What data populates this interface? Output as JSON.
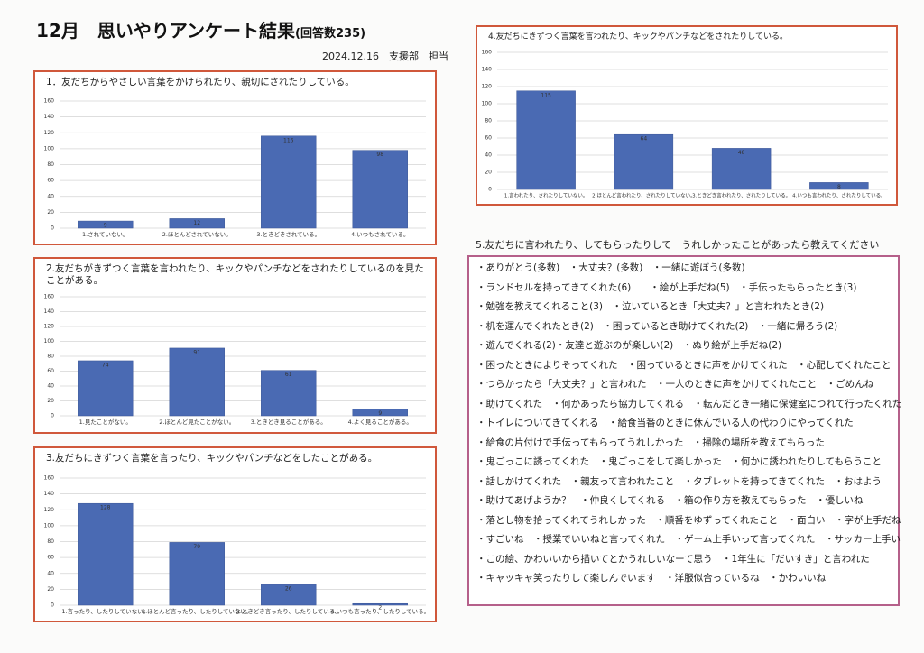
{
  "header": {
    "title": "12月　思いやりアンケート結果",
    "count": "(回答数235)",
    "date": "2024.12.16　支援部　担当"
  },
  "chart_data": [
    {
      "type": "bar",
      "title": "1．友だちからやさしい言葉をかけられたり、親切にされたりしている。",
      "categories": [
        "1.されていない。",
        "2.ほとんどされていない。",
        "3.ときどきされている。",
        "4.いつもされている。"
      ],
      "values": [
        9,
        12,
        116,
        98
      ],
      "color": "#4a6ab3",
      "ylim": [
        0,
        160
      ],
      "yticks": [
        0,
        20,
        40,
        60,
        80,
        100,
        120,
        140,
        160
      ],
      "grid": true
    },
    {
      "type": "bar",
      "title": "2.友だちがきずつく言葉を言われたり、キックやパンチなどをされたりしているのを見たことがある。",
      "categories": [
        "1.見たことがない。",
        "2.ほとんど見たことがない。",
        "3.ときどき見ることがある。",
        "4.よく見ることがある。"
      ],
      "values": [
        74,
        91,
        61,
        9
      ],
      "color": "#4a6ab3",
      "ylim": [
        0,
        160
      ],
      "yticks": [
        0,
        20,
        40,
        60,
        80,
        100,
        120,
        140,
        160
      ],
      "grid": true
    },
    {
      "type": "bar",
      "title": "3.友だちにきずつく言葉を言ったり、キックやパンチなどをしたことがある。",
      "categories": [
        "1.言ったり、したりしていない。",
        "2.ほとんど言ったり、したりしていない。",
        "3.ときどき言ったり、したりしている。",
        "4.いつも言ったり、したりしている。"
      ],
      "values": [
        128,
        79,
        26,
        2
      ],
      "color": "#4a6ab3",
      "ylim": [
        0,
        160
      ],
      "yticks": [
        0,
        20,
        40,
        60,
        80,
        100,
        120,
        140,
        160
      ],
      "grid": true
    },
    {
      "type": "bar",
      "title": "4.友だちにきずつく言葉を言われたり、キックやパンチなどをされたりしている。",
      "categories": [
        "1.言われたり、されたりしていない。",
        "2.ほとんど言われたり、されたりしていない。",
        "3.ときどき言われたり、されたりしている。",
        "4.いつも言われたり、されたりしている。"
      ],
      "values": [
        115,
        64,
        48,
        8
      ],
      "color": "#4a6ab3",
      "ylim": [
        0,
        160
      ],
      "yticks": [
        0,
        20,
        40,
        60,
        80,
        100,
        120,
        140,
        160
      ],
      "grid": true
    }
  ],
  "comments": {
    "title": "5.友だちに言われたり、してもらったりして　うれしかったことがあったら教えてください",
    "lines": [
      "・ありがとう(多数)　・大丈夫？(多数)　・一緒に遊ぼう(多数)",
      "・ランドセルを持ってきてくれた(6)　　・絵が上手だね(5)　・手伝ったもらったとき(3)",
      "・勉強を教えてくれること(3)　・泣いているとき「大丈夫？」と言われたとき(2)",
      "・机を運んでくれたとき(2)　・困っているとき助けてくれた(2)　・一緒に帰ろう(2)",
      "・遊んでくれる(2)・友達と遊ぶのが楽しい(2)　・ぬり絵が上手だね(2)",
      "・困ったときによりそってくれた　・困っているときに声をかけてくれた　・心配してくれたこと",
      "・つらかったら「大丈夫？」と言われた　・一人のときに声をかけてくれたこと　・ごめんね",
      "・助けてくれた　・何かあったら協力してくれる　・転んだとき一緒に保健室につれて行ったくれた",
      "・トイレについてきてくれる　・給食当番のときに休んでいる人の代わりにやってくれた",
      "・給食の片付けで手伝ってもらってうれしかった　・掃除の場所を教えてもらった",
      "・鬼ごっこに誘ってくれた　・鬼ごっこをして楽しかった　・何かに誘われたりしてもらうこと",
      "・話しかけてくれた　・親友って言われたこと　・タブレットを持ってきてくれた　・おはよう",
      "・助けてあげようか？　・仲良くしてくれる　・箱の作り方を教えてもらった　・優しいね",
      "・落とし物を拾ってくれてうれしかった　・順番をゆずってくれたこと　・面白い　・字が上手だね",
      "・すごいね　・授業でいいねと言ってくれた　・ゲーム上手いって言ってくれた　・サッカー上手い",
      "・この絵、かわいいから描いてとかうれしいなーて思う　・1年生に「だいすき」と言われた",
      "・キャッキャ笑ったりして楽しんでいます　・洋服似合っているね　・かわいいね"
    ]
  }
}
